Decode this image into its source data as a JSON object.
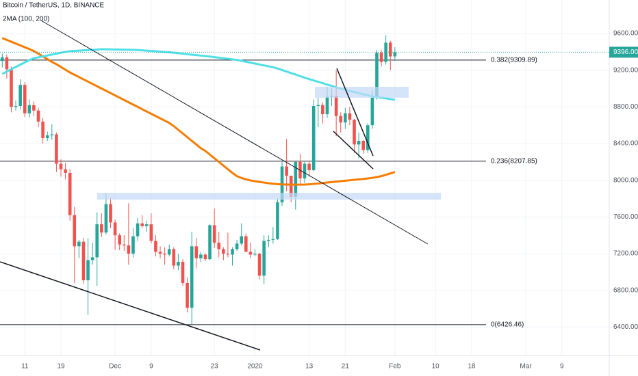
{
  "chart_data": {
    "type": "candlestick",
    "title": "Bitcoin / TetherUS, 1D, BINANCE",
    "subtitle": "2MA (100, 200)",
    "categories": [
      null,
      null,
      null,
      null,
      null,
      "11",
      null,
      null,
      null,
      null,
      null,
      null,
      null,
      "19",
      null,
      null,
      null,
      null,
      null,
      null,
      null,
      null,
      null,
      null,
      null,
      "Dec",
      null,
      null,
      null,
      null,
      null,
      null,
      null,
      "9",
      null,
      null,
      null,
      null,
      null,
      null,
      null,
      null,
      null,
      null,
      null,
      null,
      null,
      "23",
      null,
      null,
      null,
      null,
      null,
      null,
      null,
      null,
      "2020",
      null,
      null,
      null,
      null,
      null,
      null,
      null,
      null,
      null,
      null,
      null,
      "13",
      null,
      null,
      null,
      null,
      null,
      null,
      null,
      "21",
      null,
      null,
      null,
      null,
      null,
      null,
      null,
      null,
      null,
      null,
      "Feb",
      null,
      null,
      null,
      null,
      null,
      null,
      null,
      null,
      "10",
      null,
      null,
      null,
      null,
      null,
      null,
      null,
      "18",
      null,
      null,
      null,
      null,
      null,
      null,
      null,
      null,
      null,
      null,
      null,
      "Mar",
      null,
      null,
      null,
      null,
      null,
      null,
      null,
      "9",
      null,
      null,
      null,
      null,
      null,
      null,
      null,
      null,
      null,
      null
    ],
    "open": [
      9300,
      9340,
      9210,
      8800,
      8810,
      9040,
      8730,
      8820,
      8760,
      8640,
      8460,
      8490,
      8500,
      8180,
      8120,
      8080,
      7620,
      7280,
      7330,
      6910,
      7130,
      7160,
      7520,
      7430,
      7740,
      7540,
      7400,
      7300,
      7290,
      7200,
      7390,
      7530,
      7500,
      7520,
      7340,
      7220,
      7200,
      7190,
      7250,
      7070,
      7110,
      6880,
      6610,
      7280,
      7150,
      7190,
      7140,
      7510,
      7320,
      7250,
      7200,
      7190,
      7250,
      7310,
      7390,
      7220,
      7190,
      7200,
      6960,
      7340,
      7350,
      7360,
      7760,
      8150,
      8050,
      7820,
      8200,
      8020,
      8180,
      8110,
      8810,
      8820,
      8720,
      8910,
      8920,
      8700,
      8630,
      8730,
      8660,
      8390,
      8430,
      8330,
      8600,
      8900,
      9390,
      9290,
      9500,
      9350,
      null,
      null,
      null,
      null,
      null,
      null,
      null,
      null,
      null,
      null,
      null,
      null,
      null,
      null,
      null,
      null,
      null,
      null,
      null,
      null,
      null,
      null,
      null,
      null,
      null,
      null,
      null,
      null,
      null,
      null,
      null,
      null,
      null,
      null,
      null,
      null,
      null,
      null,
      null,
      null,
      null,
      null,
      null,
      null,
      null,
      null,
      null
    ],
    "high": [
      9380,
      9370,
      9240,
      8870,
      9100,
      9070,
      8880,
      8860,
      8790,
      8680,
      8530,
      8610,
      8520,
      8230,
      8190,
      8120,
      7710,
      7350,
      7370,
      7370,
      7320,
      7650,
      7640,
      7860,
      7810,
      7570,
      7420,
      7400,
      7750,
      7480,
      7590,
      7620,
      7560,
      7640,
      7400,
      7280,
      7270,
      7300,
      7270,
      7200,
      7140,
      6940,
      7440,
      7370,
      7220,
      7200,
      7520,
      7690,
      7440,
      7270,
      7430,
      7270,
      7350,
      7530,
      7420,
      7320,
      7250,
      7210,
      7400,
      7400,
      7490,
      7800,
      8210,
      8450,
      8050,
      8200,
      8290,
      8200,
      8200,
      8880,
      8900,
      8850,
      9020,
      9000,
      9200,
      8740,
      8790,
      8800,
      8670,
      8520,
      8440,
      8620,
      8980,
      9420,
      9420,
      9580,
      9520,
      9450,
      null,
      null,
      null,
      null,
      null,
      null,
      null,
      null,
      null,
      null,
      null,
      null,
      null,
      null,
      null,
      null,
      null,
      null,
      null,
      null,
      null,
      null,
      null,
      null,
      null,
      null,
      null,
      null,
      null,
      null,
      null,
      null,
      null,
      null,
      null,
      null,
      null,
      null,
      null,
      null,
      null,
      null,
      null,
      null,
      null,
      null,
      null
    ],
    "low": [
      9230,
      9110,
      8740,
      8760,
      8770,
      8690,
      8680,
      8700,
      8580,
      8400,
      8430,
      8440,
      8090,
      8040,
      8010,
      7560,
      6880,
      7150,
      6870,
      6530,
      7080,
      6850,
      7380,
      7410,
      7480,
      7240,
      7240,
      7230,
      7080,
      7160,
      7340,
      7480,
      7440,
      7310,
      7170,
      7150,
      7080,
      7170,
      7030,
      7020,
      6850,
      6560,
      6430,
      7040,
      7110,
      7120,
      7130,
      7260,
      7160,
      7130,
      7160,
      7070,
      7230,
      7290,
      7220,
      7150,
      7170,
      6920,
      6870,
      7270,
      7310,
      7350,
      7720,
      7880,
      7760,
      7680,
      7960,
      7970,
      8040,
      8100,
      8580,
      8620,
      8680,
      8810,
      8480,
      8520,
      8560,
      8600,
      8300,
      8240,
      8290,
      8300,
      8560,
      8880,
      9240,
      9260,
      9200,
      9300,
      null,
      null,
      null,
      null,
      null,
      null,
      null,
      null,
      null,
      null,
      null,
      null,
      null,
      null,
      null,
      null,
      null,
      null,
      null,
      null,
      null,
      null,
      null,
      null,
      null,
      null,
      null,
      null,
      null,
      null,
      null,
      null,
      null,
      null,
      null,
      null,
      null,
      null,
      null,
      null,
      null,
      null,
      null,
      null,
      null,
      null,
      null
    ],
    "close": [
      9340,
      9210,
      8800,
      8810,
      9040,
      8730,
      8820,
      8760,
      8640,
      8460,
      8490,
      8500,
      8180,
      8120,
      8080,
      7620,
      7280,
      7330,
      6910,
      7130,
      7160,
      7520,
      7430,
      7740,
      7540,
      7400,
      7300,
      7290,
      7200,
      7390,
      7530,
      7500,
      7520,
      7340,
      7220,
      7200,
      7190,
      7250,
      7070,
      7110,
      6880,
      6610,
      7280,
      7150,
      7190,
      7140,
      7510,
      7320,
      7250,
      7200,
      7190,
      7250,
      7310,
      7390,
      7220,
      7190,
      7200,
      6960,
      7340,
      7350,
      7360,
      7760,
      8150,
      8050,
      7820,
      8200,
      8020,
      8180,
      8110,
      8810,
      8820,
      8720,
      8910,
      8920,
      8700,
      8630,
      8730,
      8660,
      8390,
      8430,
      8330,
      8600,
      8900,
      9390,
      9290,
      9500,
      9350,
      9396,
      null,
      null,
      null,
      null,
      null,
      null,
      null,
      null,
      null,
      null,
      null,
      null,
      null,
      null,
      null,
      null,
      null,
      null,
      null,
      null,
      null,
      null,
      null,
      null,
      null,
      null,
      null,
      null,
      null,
      null,
      null,
      null,
      null,
      null,
      null,
      null,
      null,
      null,
      null,
      null,
      null,
      null,
      null,
      null,
      null,
      null,
      null
    ],
    "up_color": "#26a69a",
    "down_color": "#ef5350",
    "series": [
      {
        "color": "#f57c00",
        "values": [
          9550,
          9530,
          9510,
          9490,
          9470,
          9450,
          9430,
          9408,
          9380,
          9350,
          9320,
          9290,
          9265,
          9235,
          9205,
          9175,
          9150,
          9125,
          9100,
          9075,
          9050,
          9025,
          9000,
          8975,
          8950,
          8925,
          8900,
          8875,
          8850,
          8825,
          8800,
          8775,
          8750,
          8725,
          8700,
          8675,
          8650,
          8625,
          8590,
          8550,
          8510,
          8470,
          8430,
          8390,
          8350,
          8320,
          8280,
          8240,
          8200,
          8160,
          8120,
          8080,
          8045,
          8025,
          8010,
          7998,
          7990,
          7982,
          7975,
          7968,
          7962,
          7958,
          7955,
          7953,
          7952,
          7952,
          7952,
          7953,
          7956,
          7960,
          7965,
          7970,
          7975,
          7980,
          7985,
          7990,
          7995,
          8000,
          8005,
          8010,
          8015,
          8020,
          8026,
          8035,
          8045,
          8060,
          8075,
          8090,
          null,
          null,
          null,
          null,
          null,
          null,
          null,
          null,
          null,
          null,
          null,
          null,
          null,
          null,
          null,
          null,
          null,
          null,
          null,
          null,
          null,
          null,
          null,
          null,
          null,
          null,
          null,
          null,
          null,
          null,
          null,
          null,
          null,
          null,
          null,
          null,
          null,
          null,
          null,
          null,
          null,
          null,
          null,
          null,
          null,
          null,
          null
        ]
      },
      {
        "color": "#4fdfe6",
        "values": [
          9160,
          9185,
          9210,
          9235,
          9260,
          9285,
          9310,
          9330,
          9340,
          9350,
          9360,
          9370,
          9380,
          9390,
          9400,
          9407,
          9410,
          9413,
          9416,
          9419,
          9422,
          9425,
          9428,
          9428,
          9427,
          9426,
          9425,
          9424,
          9423,
          9422,
          9420,
          9416,
          9413,
          9409,
          9406,
          9402,
          9399,
          9395,
          9390,
          9385,
          9380,
          9374,
          9369,
          9364,
          9359,
          9354,
          9348,
          9342,
          9336,
          9330,
          9324,
          9318,
          9312,
          9302,
          9292,
          9282,
          9272,
          9262,
          9252,
          9242,
          9232,
          9218,
          9202,
          9185,
          9168,
          9152,
          9135,
          9118,
          9103,
          9088,
          9073,
          9058,
          9043,
          9028,
          9013,
          8998,
          8986,
          8974,
          8962,
          8950,
          8938,
          8926,
          8914,
          8907,
          8900,
          8893,
          8885,
          8877,
          null,
          null,
          null,
          null,
          null,
          null,
          null,
          null,
          null,
          null,
          null,
          null,
          null,
          null,
          null,
          null,
          null,
          null,
          null,
          null,
          null,
          null,
          null,
          null,
          null,
          null,
          null,
          null,
          null,
          null,
          null,
          null,
          null,
          null,
          null,
          null,
          null,
          null,
          null,
          null,
          null,
          null,
          null,
          null,
          null,
          null,
          null
        ]
      }
    ],
    "levels": [
      {
        "value": 9309.89,
        "label": "0.382(9309.89)"
      },
      {
        "value": 8207.85,
        "label": "0.236(8207.85)"
      },
      {
        "value": 6426.46,
        "label": "0(6426.46)"
      }
    ],
    "last_price": {
      "value": 9396,
      "label": "9396.00",
      "color": "#26a69a"
    },
    "ylim": [
      6090,
      9965
    ],
    "yticks": [
      {
        "value": 6400,
        "label": "6400.00"
      },
      {
        "value": 6800,
        "label": "6800.00"
      },
      {
        "value": 7200,
        "label": "7200.00"
      },
      {
        "value": 7600,
        "label": "7600.00"
      },
      {
        "value": 8000,
        "label": "8000.00"
      },
      {
        "value": 8400,
        "label": "8400.00"
      },
      {
        "value": 8800,
        "label": "8800.00"
      },
      {
        "value": 9200,
        "label": "9200.00"
      },
      {
        "value": 9600,
        "label": "9600.00"
      }
    ],
    "grid": true
  }
}
